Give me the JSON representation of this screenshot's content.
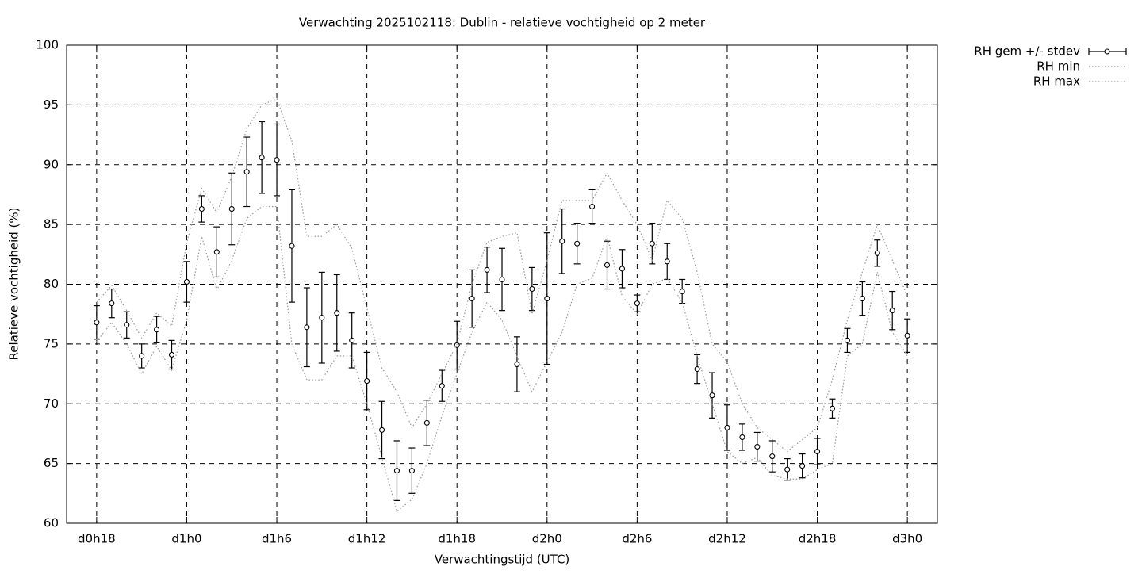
{
  "chart_data": {
    "type": "errorbar-line",
    "title": "Verwachting 2025102118: Dublin - relatieve vochtigheid op 2 meter",
    "xlabel": "Verwachtingstijd (UTC)",
    "ylabel": "Relatieve vochtigheid (%)",
    "x": [
      18,
      19,
      20,
      21,
      22,
      23,
      24,
      25,
      26,
      27,
      28,
      29,
      30,
      31,
      32,
      33,
      34,
      35,
      36,
      37,
      38,
      39,
      40,
      41,
      42,
      43,
      44,
      45,
      46,
      47,
      48,
      49,
      50,
      51,
      52,
      53,
      54,
      55,
      56,
      57,
      58,
      59,
      60,
      61,
      62,
      63,
      64,
      65,
      66,
      67,
      68,
      69,
      70,
      71,
      72
    ],
    "xlim": [
      16,
      74
    ],
    "xticks": [
      {
        "value": 18,
        "label": "d0h18"
      },
      {
        "value": 24,
        "label": "d1h0"
      },
      {
        "value": 30,
        "label": "d1h6"
      },
      {
        "value": 36,
        "label": "d1h12"
      },
      {
        "value": 42,
        "label": "d1h18"
      },
      {
        "value": 48,
        "label": "d2h0"
      },
      {
        "value": 54,
        "label": "d2h6"
      },
      {
        "value": 60,
        "label": "d2h12"
      },
      {
        "value": 66,
        "label": "d2h18"
      },
      {
        "value": 72,
        "label": "d3h0"
      }
    ],
    "ylim": [
      60,
      100
    ],
    "yticks": [
      60,
      65,
      70,
      75,
      80,
      85,
      90,
      95,
      100
    ],
    "grid": true,
    "legend": "outside-top-right",
    "series": [
      {
        "name": "RH gem +/- stdev",
        "color": "#000000",
        "style": "errorbars",
        "values": [
          76.8,
          78.4,
          76.6,
          74.0,
          76.2,
          74.1,
          80.2,
          86.3,
          82.7,
          86.3,
          89.4,
          90.6,
          90.4,
          83.2,
          76.4,
          77.2,
          77.6,
          75.3,
          71.9,
          67.8,
          64.4,
          64.4,
          68.4,
          71.5,
          74.9,
          78.8,
          81.2,
          80.4,
          73.3,
          79.6,
          78.8,
          83.6,
          83.4,
          86.5,
          81.6,
          81.3,
          78.4,
          83.4,
          81.9,
          79.4,
          72.9,
          70.7,
          68.0,
          67.2,
          66.4,
          65.6,
          64.5,
          64.8,
          66.0,
          69.6,
          75.3,
          78.8,
          82.6,
          77.8,
          75.7
        ],
        "errors": [
          1.4,
          1.2,
          1.1,
          1.0,
          1.1,
          1.2,
          1.7,
          1.1,
          2.1,
          3.0,
          2.9,
          3.0,
          3.0,
          4.7,
          3.3,
          3.8,
          3.2,
          2.3,
          2.4,
          2.4,
          2.5,
          1.9,
          1.9,
          1.3,
          2.0,
          2.4,
          1.9,
          2.6,
          2.3,
          1.8,
          5.5,
          2.7,
          1.7,
          1.4,
          2.0,
          1.6,
          0.7,
          1.7,
          1.5,
          1.0,
          1.2,
          1.9,
          1.9,
          1.1,
          1.2,
          1.3,
          0.9,
          1.0,
          1.1,
          0.8,
          1.0,
          1.4,
          1.1,
          1.6,
          1.4
        ]
      },
      {
        "name": "RH min",
        "color": "#999999",
        "style": "dotted",
        "values": [
          75.2,
          76.8,
          75,
          72.5,
          74.8,
          72.8,
          77,
          84,
          79.5,
          82,
          85.5,
          86.5,
          86.5,
          75,
          72,
          72,
          74,
          74,
          70,
          65.5,
          61,
          62,
          65,
          69,
          72.5,
          76,
          78.5,
          77,
          74,
          71,
          73.5,
          76,
          80,
          80.5,
          84,
          79,
          77.5,
          80,
          80.5,
          78.5,
          74,
          70,
          66,
          65,
          65.5,
          64,
          63.7,
          63.7,
          64.5,
          65,
          74,
          75,
          81,
          76,
          74
        ]
      },
      {
        "name": "RH max",
        "color": "#999999",
        "style": "dotted",
        "values": [
          78.5,
          79.9,
          77.8,
          75.5,
          77.6,
          76.5,
          83.5,
          88,
          86,
          89,
          93,
          95,
          95.5,
          92,
          84,
          84,
          85,
          83,
          78,
          73,
          71,
          68,
          70,
          72.5,
          75,
          80,
          83.5,
          84,
          84.3,
          77.5,
          82,
          87,
          87,
          87,
          89.3,
          87,
          85,
          82,
          87,
          85.5,
          81,
          75,
          73.5,
          70,
          68,
          67,
          66,
          67,
          68,
          72,
          77,
          81,
          85,
          82,
          79
        ]
      }
    ]
  }
}
